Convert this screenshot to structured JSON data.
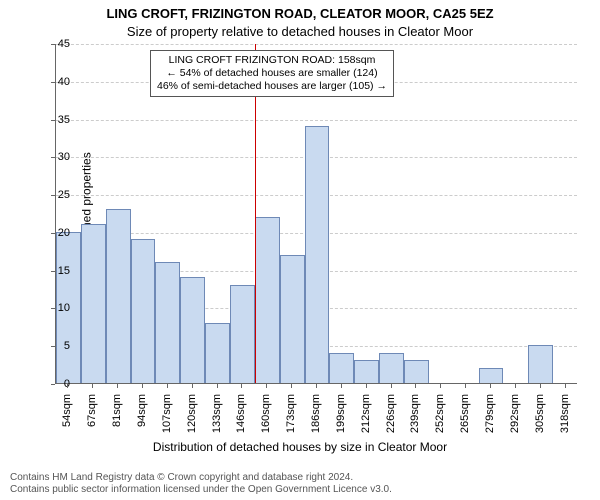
{
  "title_line1": "LING CROFT, FRIZINGTON ROAD, CLEATOR MOOR, CA25 5EZ",
  "title_line2": "Size of property relative to detached houses in Cleator Moor",
  "y_axis_label": "Number of detached properties",
  "x_axis_label": "Distribution of detached houses by size in Cleator Moor",
  "chart": {
    "type": "histogram",
    "ylim": [
      0,
      45
    ],
    "ytick_step": 5,
    "bar_fill": "#c9daf0",
    "bar_stroke": "#6e89b6",
    "grid_color": "#cccccc",
    "axis_color": "#666666",
    "background": "#ffffff",
    "bar_width_rel": 1.0,
    "categories": [
      "54sqm",
      "67sqm",
      "81sqm",
      "94sqm",
      "107sqm",
      "120sqm",
      "133sqm",
      "146sqm",
      "160sqm",
      "173sqm",
      "186sqm",
      "199sqm",
      "212sqm",
      "226sqm",
      "239sqm",
      "252sqm",
      "265sqm",
      "279sqm",
      "292sqm",
      "305sqm",
      "318sqm"
    ],
    "values": [
      20,
      21,
      23,
      19,
      16,
      14,
      8,
      13,
      22,
      17,
      34,
      4,
      3,
      4,
      3,
      0,
      0,
      2,
      0,
      5,
      0
    ],
    "reference_line": {
      "x_index": 8,
      "color": "#cc0000"
    },
    "annotation": {
      "lines": [
        "LING CROFT FRIZINGTON ROAD: 158sqm",
        "← 54% of detached houses are smaller (124)",
        "46% of semi-detached houses are larger (105) →"
      ],
      "border_color": "#555555",
      "background": "#ffffff",
      "fontsize": 10.5
    }
  },
  "footer_line1": "Contains HM Land Registry data © Crown copyright and database right 2024.",
  "footer_line2": "Contains public sector information licensed under the Open Government Licence v3.0."
}
